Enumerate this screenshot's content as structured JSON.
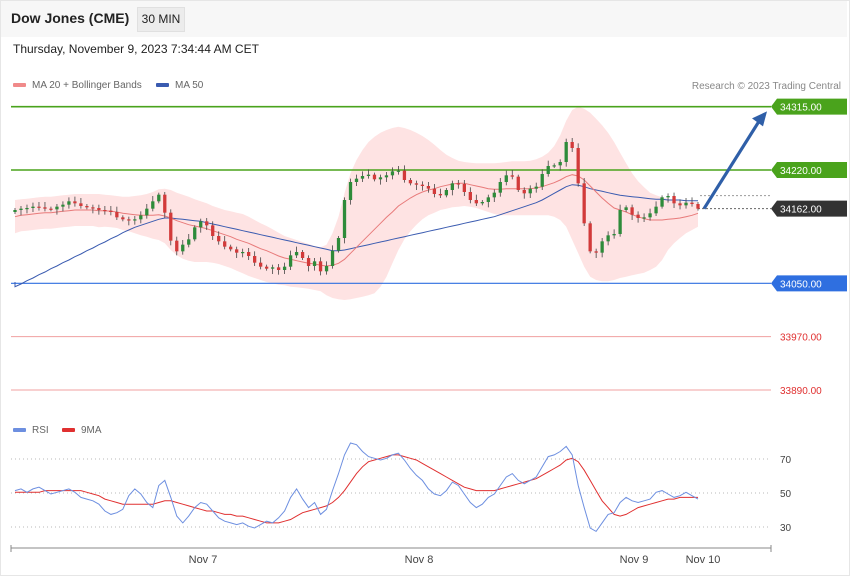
{
  "header": {
    "title": "Dow Jones (CME)",
    "timeframe": "30 MIN"
  },
  "datetime": "Thursday, November 9, 2023 7:34:44 AM CET",
  "legend": {
    "ma20_label": "MA 20 + Bollinger Bands",
    "ma50_label": "MA 50",
    "rsi_label": "RSI",
    "rsi_ma_label": "9MA"
  },
  "credit": "Research © 2023 Trading Central",
  "colors": {
    "up": "#2e8b3a",
    "down": "#d23a3a",
    "ma20": "#e87a7a",
    "ma50": "#3a5bb0",
    "band": "#fdd9d9",
    "resistance": "#4aa31c",
    "support": "#2f6fe0",
    "support_weak": "#f0a0a0",
    "rsi": "#6d8fe0",
    "rsi_ma": "#e03030",
    "arrow": "#2f5fa8",
    "current": "#333333"
  },
  "chart_data": [
    {
      "type": "candlestick",
      "x_axis_labels": [
        "Nov 7",
        "Nov 8",
        "Nov 9",
        "Nov 10"
      ],
      "ylim": [
        33860,
        34325
      ],
      "levels": [
        {
          "value": 34315.0,
          "label": "34315.00",
          "kind": "resistance"
        },
        {
          "value": 34220.0,
          "label": "34220.00",
          "kind": "resistance"
        },
        {
          "value": 34162.0,
          "label": "34162.00",
          "kind": "current"
        },
        {
          "value": 34050.0,
          "label": "34050.00",
          "kind": "support"
        },
        {
          "value": 33970.0,
          "label": "33970.00",
          "kind": "support_weak"
        },
        {
          "value": 33890.0,
          "label": "33890.00",
          "kind": "support_weak"
        }
      ],
      "projection": {
        "from": 34162,
        "to": 34305
      },
      "closes": [
        34160,
        34162,
        34163,
        34165,
        34164,
        34162,
        34161,
        34165,
        34168,
        34173,
        34170,
        34166,
        34164,
        34163,
        34160,
        34159,
        34157,
        34149,
        34146,
        34145,
        34146,
        34152,
        34162,
        34173,
        34183,
        34156,
        34114,
        34098,
        34108,
        34116,
        34134,
        34143,
        34137,
        34121,
        34113,
        34105,
        34101,
        34096,
        34097,
        34091,
        34081,
        34075,
        34072,
        34074,
        34070,
        34075,
        34092,
        34097,
        34088,
        34076,
        34083,
        34068,
        34076,
        34099,
        34118,
        34175,
        34202,
        34207,
        34211,
        34213,
        34206,
        34209,
        34212,
        34218,
        34219,
        34205,
        34200,
        34198,
        34196,
        34192,
        34184,
        34182,
        34190,
        34200,
        34199,
        34187,
        34175,
        34170,
        34172,
        34179,
        34186,
        34202,
        34212,
        34210,
        34190,
        34185,
        34192,
        34195,
        34214,
        34226,
        34227,
        34232,
        34262,
        34253,
        34200,
        34140,
        34098,
        34096,
        34113,
        34122,
        34124,
        34160,
        34164,
        34153,
        34148,
        34149,
        34155,
        34165,
        34179,
        34181,
        34170,
        34167,
        34171,
        34169,
        34162
      ],
      "ma20": [
        34150,
        34152,
        34153,
        34154,
        34155,
        34156,
        34156,
        34157,
        34158,
        34159,
        34160,
        34160,
        34160,
        34160,
        34159,
        34159,
        34158,
        34157,
        34155,
        34154,
        34153,
        34152,
        34152,
        34152,
        34153,
        34151,
        34148,
        34144,
        34141,
        34138,
        34136,
        34134,
        34132,
        34129,
        34126,
        34123,
        34120,
        34116,
        34113,
        34110,
        34106,
        34102,
        34099,
        34095,
        34091,
        34088,
        34086,
        34084,
        34082,
        34080,
        34079,
        34077,
        34076,
        34077,
        34080,
        34086,
        34095,
        34104,
        34113,
        34122,
        34131,
        34140,
        34149,
        34157,
        34166,
        34172,
        34178,
        34183,
        34187,
        34190,
        34192,
        34195,
        34197,
        34199,
        34200,
        34200,
        34198,
        34196,
        34194,
        34192,
        34191,
        34191,
        34192,
        34192,
        34192,
        34192,
        34192,
        34193,
        34195,
        34198,
        34201,
        34205,
        34210,
        34213,
        34211,
        34205,
        34196,
        34187,
        34178,
        34170,
        34163,
        34160,
        34157,
        34153,
        34150,
        34147,
        34145,
        34145,
        34145,
        34146,
        34147,
        34148,
        34150,
        34152,
        34155
      ],
      "bb_upper": [
        34175,
        34176,
        34177,
        34178,
        34179,
        34180,
        34180,
        34181,
        34182,
        34183,
        34184,
        34184,
        34184,
        34184,
        34184,
        34183,
        34182,
        34181,
        34180,
        34180,
        34181,
        34182,
        34184,
        34187,
        34191,
        34192,
        34190,
        34186,
        34183,
        34180,
        34176,
        34173,
        34170,
        34166,
        34163,
        34160,
        34158,
        34156,
        34154,
        34150,
        34145,
        34140,
        34136,
        34131,
        34126,
        34121,
        34118,
        34115,
        34112,
        34109,
        34106,
        34104,
        34108,
        34125,
        34150,
        34185,
        34215,
        34235,
        34250,
        34262,
        34270,
        34276,
        34280,
        34283,
        34285,
        34283,
        34280,
        34276,
        34271,
        34265,
        34258,
        34250,
        34243,
        34238,
        34234,
        34232,
        34231,
        34230,
        34230,
        34230,
        34230,
        34231,
        34232,
        34233,
        34233,
        34233,
        34234,
        34236,
        34240,
        34246,
        34256,
        34272,
        34294,
        34310,
        34315,
        34312,
        34306,
        34297,
        34287,
        34276,
        34262,
        34246,
        34230,
        34215,
        34203,
        34194,
        34186,
        34182,
        34179,
        34177,
        34175,
        34173,
        34172,
        34172,
        34172
      ],
      "bb_lower": [
        34125,
        34128,
        34129,
        34130,
        34131,
        34132,
        34132,
        34133,
        34134,
        34135,
        34136,
        34136,
        34136,
        34136,
        34134,
        34135,
        34134,
        34133,
        34130,
        34128,
        34125,
        34122,
        34120,
        34117,
        34115,
        34110,
        34100,
        34092,
        34087,
        34084,
        34082,
        34082,
        34082,
        34081,
        34079,
        34076,
        34073,
        34069,
        34065,
        34061,
        34058,
        34055,
        34052,
        34050,
        34048,
        34047,
        34045,
        34044,
        34043,
        34042,
        34040,
        34038,
        34032,
        34028,
        34026,
        34025,
        34026,
        34028,
        34030,
        34032,
        34035,
        34045,
        34060,
        34080,
        34100,
        34116,
        34128,
        34138,
        34146,
        34152,
        34156,
        34160,
        34162,
        34164,
        34165,
        34166,
        34165,
        34163,
        34160,
        34157,
        34154,
        34152,
        34152,
        34152,
        34152,
        34152,
        34152,
        34152,
        34152,
        34152,
        34150,
        34145,
        34135,
        34115,
        34095,
        34075,
        34060,
        34055,
        34053,
        34053,
        34055,
        34058,
        34060,
        34062,
        34064,
        34066,
        34070,
        34075,
        34085,
        34100,
        34110,
        34118,
        34125,
        34130,
        34135
      ],
      "ma50": [
        34045,
        34049,
        34054,
        34058,
        34063,
        34067,
        34072,
        34076,
        34081,
        34085,
        34090,
        34094,
        34099,
        34103,
        34108,
        34112,
        34117,
        34121,
        34126,
        34130,
        34134,
        34137,
        34140,
        34143,
        34146,
        34148,
        34148,
        34147,
        34146,
        34145,
        34144,
        34143,
        34141,
        34139,
        34137,
        34135,
        34133,
        34131,
        34129,
        34127,
        34125,
        34123,
        34121,
        34119,
        34117,
        34115,
        34113,
        34111,
        34109,
        34107,
        34105,
        34103,
        34101,
        34099,
        34099,
        34100,
        34102,
        34104,
        34106,
        34108,
        34110,
        34112,
        34114,
        34116,
        34118,
        34120,
        34122,
        34124,
        34126,
        34128,
        34130,
        34132,
        34134,
        34136,
        34138,
        34140,
        34142,
        34144,
        34146,
        34148,
        34150,
        34153,
        34156,
        34159,
        34162,
        34165,
        34168,
        34171,
        34175,
        34180,
        34185,
        34190,
        34195,
        34198,
        34197,
        34195,
        34192,
        34190,
        34188,
        34186,
        34184,
        34182,
        34181,
        34180,
        34179,
        34178,
        34177,
        34176,
        34176,
        34175,
        34175,
        34175,
        34174,
        34174,
        34174
      ]
    },
    {
      "type": "line",
      "name": "RSI",
      "ylim": [
        20,
        80
      ],
      "y_ticks": [
        70,
        50,
        30
      ],
      "rsi": [
        52,
        53,
        51,
        53,
        54,
        52,
        50,
        51,
        52,
        53,
        51,
        48,
        47,
        46,
        44,
        40,
        38,
        39,
        41,
        49,
        53,
        50,
        45,
        42,
        55,
        58,
        48,
        37,
        33,
        37,
        42,
        45,
        44,
        40,
        36,
        34,
        33,
        32,
        33,
        31,
        30,
        32,
        34,
        33,
        36,
        40,
        48,
        53,
        47,
        42,
        45,
        38,
        41,
        52,
        62,
        73,
        80,
        79,
        75,
        72,
        71,
        70,
        71,
        73,
        74,
        70,
        65,
        61,
        58,
        53,
        50,
        49,
        52,
        57,
        55,
        50,
        45,
        42,
        44,
        48,
        50,
        55,
        60,
        62,
        58,
        56,
        58,
        60,
        66,
        72,
        73,
        75,
        78,
        73,
        55,
        42,
        30,
        28,
        33,
        38,
        39,
        45,
        48,
        46,
        45,
        46,
        47,
        51,
        52,
        50,
        48,
        49,
        51,
        49,
        47
      ],
      "rsi_ma": [
        51,
        51,
        51,
        51,
        51,
        52,
        52,
        52,
        52,
        52,
        52,
        52,
        51,
        50,
        49,
        47,
        46,
        45,
        44,
        44,
        44,
        44,
        44,
        44,
        45,
        46,
        46,
        45,
        44,
        43,
        42,
        41,
        40,
        40,
        39,
        38,
        38,
        37,
        37,
        36,
        35,
        34,
        33,
        33,
        33,
        34,
        35,
        37,
        39,
        40,
        41,
        42,
        43,
        45,
        48,
        52,
        57,
        62,
        66,
        69,
        70,
        71,
        72,
        73,
        73,
        72,
        71,
        70,
        68,
        66,
        64,
        62,
        60,
        58,
        56,
        54,
        53,
        52,
        52,
        52,
        52,
        53,
        54,
        55,
        56,
        57,
        58,
        59,
        61,
        63,
        65,
        67,
        70,
        71,
        69,
        64,
        58,
        52,
        46,
        42,
        38,
        37,
        38,
        40,
        42,
        43,
        44,
        45,
        46,
        47,
        47,
        48,
        48,
        48,
        48
      ]
    }
  ]
}
